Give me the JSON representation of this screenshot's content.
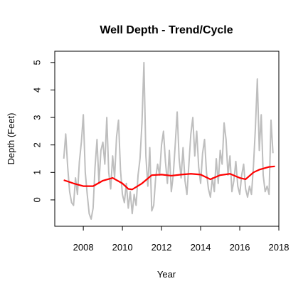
{
  "chart_data": {
    "type": "line",
    "title": "Well Depth - Trend/Cycle",
    "x_label": "Year",
    "y_label": "Depth (Feet)",
    "xlim": [
      2006.54,
      2018.0
    ],
    "ylim": [
      -0.96,
      5.41
    ],
    "xticks": [
      2008,
      2010,
      2012,
      2014,
      2016,
      2018
    ],
    "yticks": [
      0,
      1,
      2,
      3,
      4,
      5
    ],
    "series": [
      {
        "color": "#bebebe",
        "x": [
          2007.0,
          2007.1,
          2007.2,
          2007.3,
          2007.4,
          2007.5,
          2007.6,
          2007.7,
          2007.8,
          2007.9,
          2008.0,
          2008.1,
          2008.2,
          2008.3,
          2008.4,
          2008.5,
          2008.6,
          2008.7,
          2008.8,
          2008.9,
          2009.0,
          2009.1,
          2009.2,
          2009.3,
          2009.4,
          2009.5,
          2009.6,
          2009.7,
          2009.8,
          2009.9,
          2010.0,
          2010.1,
          2010.2,
          2010.3,
          2010.4,
          2010.5,
          2010.6,
          2010.7,
          2010.8,
          2010.9,
          2011.0,
          2011.1,
          2011.2,
          2011.3,
          2011.4,
          2011.5,
          2011.6,
          2011.7,
          2011.8,
          2011.9,
          2012.0,
          2012.1,
          2012.2,
          2012.3,
          2012.4,
          2012.5,
          2012.6,
          2012.7,
          2012.8,
          2012.9,
          2013.0,
          2013.1,
          2013.2,
          2013.3,
          2013.4,
          2013.5,
          2013.6,
          2013.7,
          2013.8,
          2013.9,
          2014.0,
          2014.1,
          2014.2,
          2014.3,
          2014.4,
          2014.5,
          2014.6,
          2014.7,
          2014.8,
          2014.9,
          2015.0,
          2015.1,
          2015.2,
          2015.3,
          2015.4,
          2015.5,
          2015.6,
          2015.7,
          2015.8,
          2015.9,
          2016.0,
          2016.1,
          2016.2,
          2016.3,
          2016.4,
          2016.5,
          2016.6,
          2016.7,
          2016.8,
          2016.9,
          2017.0,
          2017.1,
          2017.2,
          2017.3,
          2017.4,
          2017.5,
          2017.6,
          2017.7
        ],
        "values": [
          1.5,
          2.4,
          1.2,
          0.3,
          -0.1,
          -0.2,
          0.8,
          0.2,
          1.4,
          2.1,
          3.1,
          1.0,
          0.2,
          -0.5,
          -0.7,
          -0.3,
          1.2,
          2.2,
          0.6,
          1.8,
          2.1,
          1.3,
          3.0,
          1.0,
          0.4,
          1.6,
          0.8,
          2.3,
          2.9,
          1.1,
          0.2,
          -0.1,
          0.6,
          -0.3,
          0.3,
          -0.5,
          0.2,
          -0.2,
          0.9,
          1.5,
          2.8,
          5.0,
          1.6,
          0.5,
          1.9,
          -0.4,
          -0.2,
          0.8,
          1.3,
          0.9,
          2.0,
          2.5,
          1.4,
          0.6,
          1.8,
          0.3,
          0.9,
          2.0,
          3.2,
          1.5,
          0.8,
          1.9,
          0.7,
          0.2,
          1.3,
          2.4,
          3.0,
          1.6,
          2.5,
          1.2,
          0.6,
          1.7,
          2.2,
          1.0,
          0.4,
          0.1,
          0.8,
          0.3,
          1.5,
          0.6,
          1.8,
          1.3,
          2.8,
          2.2,
          0.9,
          1.6,
          0.3,
          0.7,
          1.4,
          0.5,
          0.2,
          0.9,
          1.3,
          0.4,
          0.1,
          0.5,
          0.2,
          1.2,
          2.6,
          4.4,
          1.8,
          3.1,
          0.9,
          0.3,
          0.5,
          0.2,
          2.9,
          1.7
        ]
      },
      {
        "color": "#ff0000",
        "x": [
          2007.0,
          2007.5,
          2008.0,
          2008.5,
          2009.0,
          2009.5,
          2010.0,
          2010.3,
          2010.5,
          2011.0,
          2011.5,
          2012.0,
          2012.5,
          2013.0,
          2013.5,
          2014.0,
          2014.5,
          2015.0,
          2015.5,
          2016.0,
          2016.3,
          2016.7,
          2017.0,
          2017.5,
          2017.8
        ],
        "values": [
          0.72,
          0.6,
          0.5,
          0.5,
          0.7,
          0.8,
          0.6,
          0.4,
          0.38,
          0.6,
          0.9,
          0.92,
          0.88,
          0.92,
          0.95,
          0.92,
          0.75,
          0.9,
          0.95,
          0.8,
          0.75,
          1.0,
          1.1,
          1.2,
          1.22
        ]
      }
    ]
  }
}
